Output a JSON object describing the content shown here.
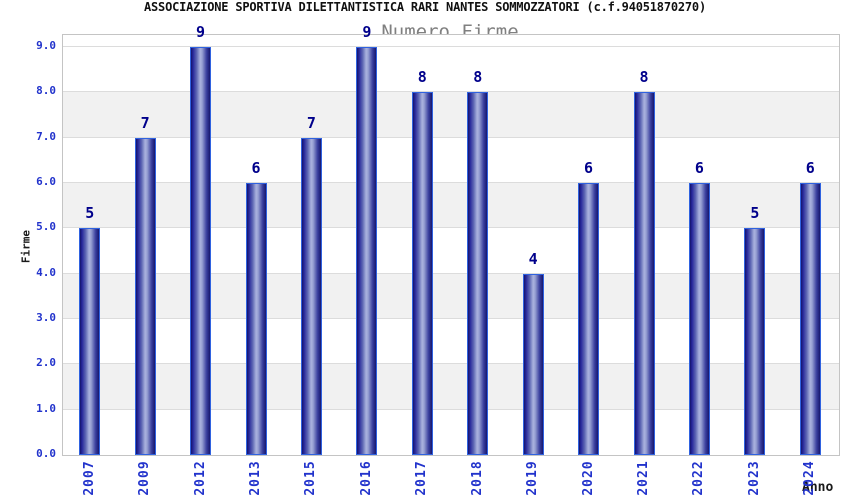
{
  "header": {
    "title": "ASSOCIAZIONE SPORTIVA DILETTANTISTICA RARI NANTES SOMMOZZATORI (c.f.94051870270)",
    "subtitle": "Numero Firme"
  },
  "axes": {
    "xlabel": "Anno",
    "ylabel": "Firme"
  },
  "chart_data": {
    "type": "bar",
    "title": "ASSOCIAZIONE SPORTIVA DILETTANTISTICA RARI NANTES SOMMOZZATORI (c.f.94051870270)",
    "subtitle": "Numero Firme",
    "xlabel": "Anno",
    "ylabel": "Firme",
    "categories": [
      "2007",
      "2009",
      "2012",
      "2013",
      "2015",
      "2016",
      "2017",
      "2018",
      "2019",
      "2020",
      "2021",
      "2022",
      "2023",
      "2024"
    ],
    "values": [
      5,
      7,
      9,
      6,
      7,
      9,
      8,
      8,
      4,
      6,
      8,
      6,
      5,
      6
    ],
    "ylim": [
      0,
      9.3
    ],
    "yticks": [
      "0.0",
      "1.0",
      "2.0",
      "3.0",
      "4.0",
      "5.0",
      "6.0",
      "7.0",
      "8.0",
      "9.0"
    ],
    "grid": "horizontal gridlines at every 1.0",
    "banding": "light gray bands on intervals 1-2, 3-4, 5-6, 7-8",
    "legend_position": "none",
    "bar_labels_shown": true
  },
  "colors": {
    "axis_label_blue": "#2233cc",
    "value_label": "#00008b",
    "title_color": "#111111",
    "subtitle_color": "#808080",
    "band_gray": "#f1f1f1",
    "gridline": "#dcdcdc",
    "frame": "#c4c4c4",
    "bar_border": "#2f62e0",
    "bar_dark": "#17176e",
    "bar_light": "#aab2de"
  }
}
